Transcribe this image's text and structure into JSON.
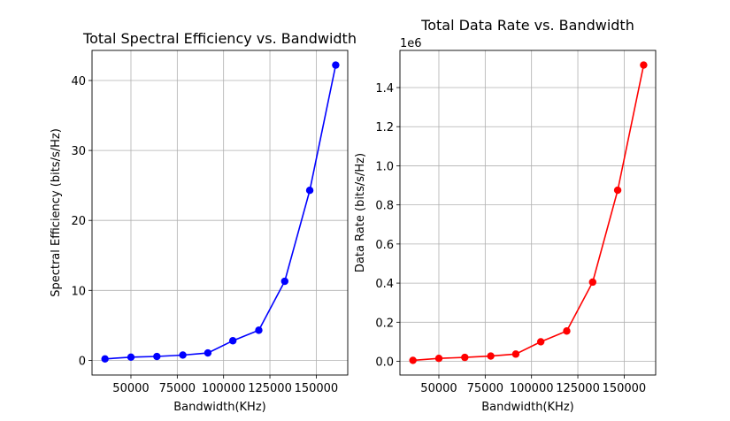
{
  "chart_data": [
    {
      "type": "line",
      "title": "Total Spectral Efficiency vs. Bandwidth",
      "xlabel": "Bandwidth(KHz)",
      "ylabel": "Spectral Efficiency (bits/s/Hz)",
      "offset_text": "",
      "grid": true,
      "xlim": [
        29000,
        167000
      ],
      "ylim": [
        -2.1,
        44.3
      ],
      "xticks": [
        50000,
        75000,
        100000,
        125000,
        150000
      ],
      "xtick_labels": [
        "50000",
        "75000",
        "100000",
        "125000",
        "150000"
      ],
      "yticks": [
        0,
        10,
        20,
        30,
        40
      ],
      "ytick_labels": [
        "0",
        "10",
        "20",
        "30",
        "40"
      ],
      "color": "#0000ff",
      "series": [
        {
          "x": [
            36000,
            50000,
            64000,
            78000,
            91500,
            105000,
            119000,
            133000,
            146500,
            160500
          ],
          "y": [
            0.2,
            0.45,
            0.55,
            0.75,
            1.05,
            2.8,
            4.3,
            11.3,
            24.3,
            42.2
          ]
        }
      ]
    },
    {
      "type": "line",
      "title": "Total Data Rate vs. Bandwidth",
      "xlabel": "Bandwidth(KHz)",
      "ylabel": "Data Rate (bits/s/Hz)",
      "offset_text": "1e6",
      "grid": true,
      "xlim": [
        29000,
        167000
      ],
      "ylim": [
        -0.07,
        1.59
      ],
      "xticks": [
        50000,
        75000,
        100000,
        125000,
        150000
      ],
      "xtick_labels": [
        "50000",
        "75000",
        "100000",
        "125000",
        "150000"
      ],
      "yticks": [
        0.0,
        0.2,
        0.4,
        0.6,
        0.8,
        1.0,
        1.2,
        1.4
      ],
      "ytick_labels": [
        "0.0",
        "0.2",
        "0.4",
        "0.6",
        "0.8",
        "1.0",
        "1.2",
        "1.4"
      ],
      "color": "#ff0000",
      "series": [
        {
          "x": [
            36000,
            50000,
            64000,
            78000,
            91500,
            105000,
            119000,
            133000,
            146500,
            160500
          ],
          "y": [
            0.005,
            0.015,
            0.02,
            0.027,
            0.037,
            0.1,
            0.155,
            0.405,
            0.875,
            1.515
          ]
        }
      ]
    }
  ]
}
